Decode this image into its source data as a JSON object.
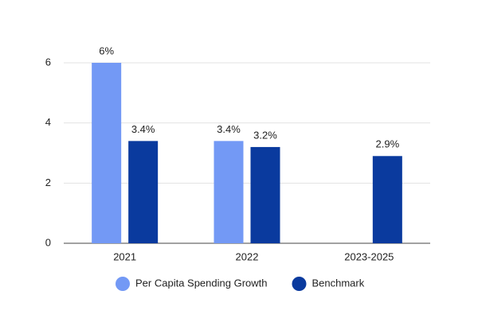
{
  "chart_data": {
    "type": "bar",
    "categories": [
      "2021",
      "2022",
      "2023-2025"
    ],
    "series": [
      {
        "name": "Per Capita Spending Growth",
        "color": "#7399f5",
        "values": [
          6,
          3.4,
          null
        ],
        "value_labels": [
          "6%",
          "3.4%",
          null
        ]
      },
      {
        "name": "Benchmark",
        "color": "#0a3a9e",
        "values": [
          3.4,
          3.2,
          2.9
        ],
        "value_labels": [
          "3.4%",
          "3.2%",
          "2.9%"
        ]
      }
    ],
    "ylim": [
      0,
      6
    ],
    "yticks": [
      0,
      2,
      4,
      6
    ],
    "grid": true,
    "legend": "bottom"
  }
}
